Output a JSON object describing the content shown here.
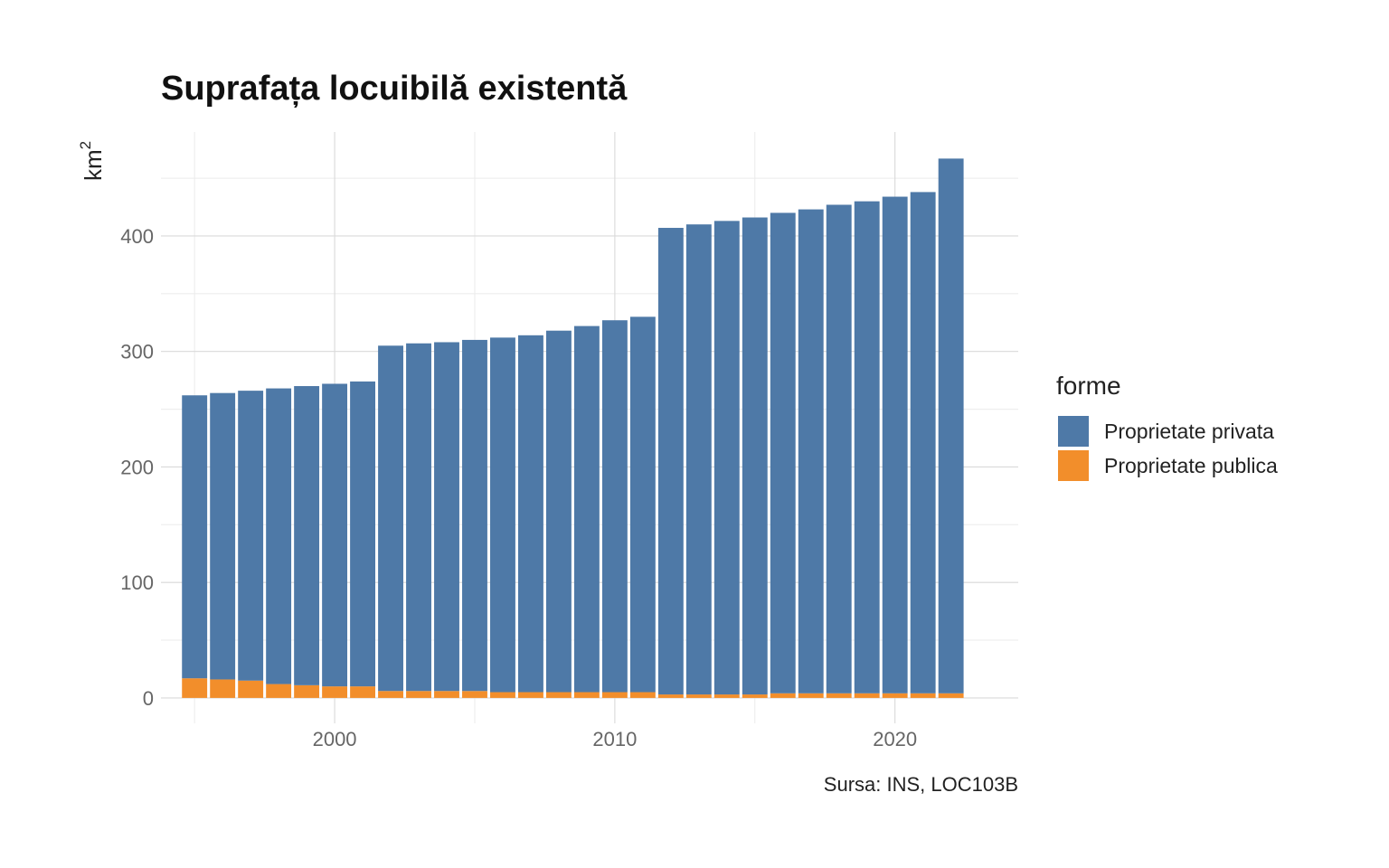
{
  "chart_data": {
    "type": "bar",
    "stacked": true,
    "title": "Suprafața locuibilă existentă",
    "ylabel": "km",
    "ylabel_superscript": "2",
    "xlabel": "",
    "caption": "Sursa: INS, LOC103B",
    "x": [
      1995,
      1996,
      1997,
      1998,
      1999,
      2000,
      2001,
      2002,
      2003,
      2004,
      2005,
      2006,
      2007,
      2008,
      2009,
      2010,
      2011,
      2012,
      2013,
      2014,
      2015,
      2016,
      2017,
      2018,
      2019,
      2020,
      2021,
      2022
    ],
    "series": [
      {
        "name": "Proprietate privata",
        "color": "#4e79a7",
        "values": [
          245,
          248,
          251,
          256,
          259,
          262,
          264,
          299,
          301,
          302,
          304,
          307,
          309,
          313,
          317,
          322,
          325,
          404,
          407,
          410,
          413,
          416,
          419,
          423,
          426,
          430,
          434,
          463
        ]
      },
      {
        "name": "Proprietate publica",
        "color": "#f28e2b",
        "values": [
          17,
          16,
          15,
          12,
          11,
          10,
          10,
          6,
          6,
          6,
          6,
          5,
          5,
          5,
          5,
          5,
          5,
          3,
          3,
          3,
          3,
          4,
          4,
          4,
          4,
          4,
          4,
          4
        ]
      }
    ],
    "xlim": [
      1993.8,
      2024.4
    ],
    "ylim": [
      -22,
      490
    ],
    "x_ticks": [
      2000,
      2010,
      2020
    ],
    "y_ticks": [
      0,
      100,
      200,
      300,
      400
    ],
    "grid": true,
    "legend": {
      "title": "forme",
      "position": "right"
    }
  }
}
